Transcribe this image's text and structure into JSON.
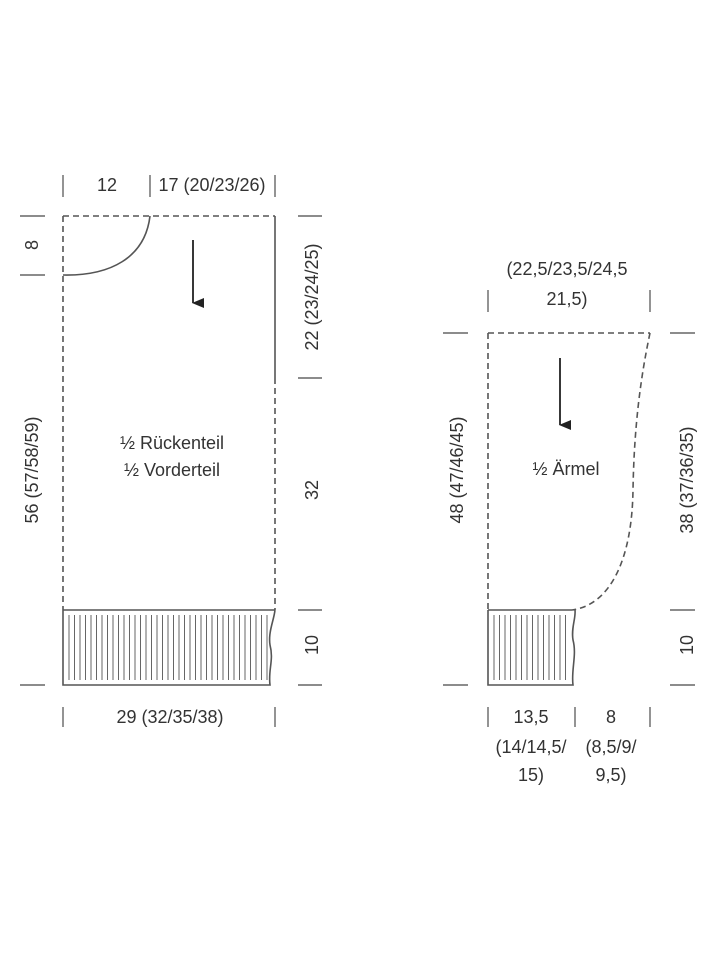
{
  "body_piece": {
    "title": [
      "½ Rückenteil",
      "½ Vorderteil"
    ],
    "top_widths": [
      "12",
      "17 (20/23/26)"
    ],
    "neck_depth": "8",
    "total_length": "56 (57/58/59)",
    "armhole_depth": "22 (23/24/25)",
    "body_length": "32",
    "rib_height": "10",
    "width": "29 (32/35/38)"
  },
  "sleeve": {
    "title": "½ Ärmel",
    "top_width": [
      "(22,5/23,5/24,5",
      "21,5)"
    ],
    "total_length": "48 (47/46/45)",
    "upper_length": "38 (37/36/35)",
    "rib_height": "10",
    "bottom_widths": [
      [
        "13,5",
        "(14/14,5/",
        "15)"
      ],
      [
        "8",
        "(8,5/9/",
        "9,5)"
      ]
    ]
  }
}
